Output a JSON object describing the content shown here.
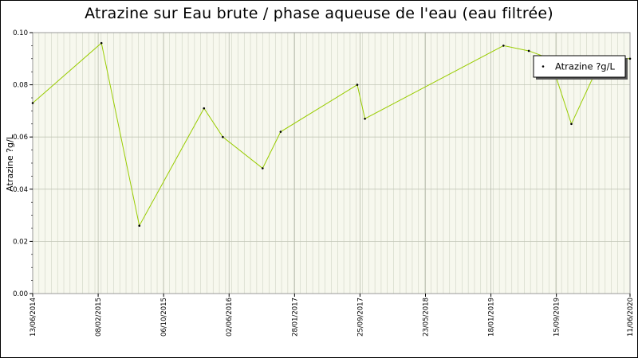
{
  "chart_data": {
    "type": "line",
    "title": "Atrazine sur Eau brute / phase aqueuse de l'eau (eau filtrée)",
    "ylabel": "Atrazine ?g/L",
    "xlabel": "",
    "ylim": [
      0,
      0.1
    ],
    "xlim": [
      "13/06/2014",
      "11/06/2020"
    ],
    "y_ticks": [
      "0.00",
      "0.02",
      "0.04",
      "0.06",
      "0.08",
      "0.10"
    ],
    "x_ticks": [
      "13/06/2014",
      "08/02/2015",
      "06/10/2015",
      "02/06/2016",
      "28/01/2017",
      "25/09/2017",
      "23/05/2018",
      "18/01/2019",
      "15/09/2019",
      "11/06/2020"
    ],
    "grid": true,
    "legend_position": "top-right",
    "series": [
      {
        "name": "Atrazine ?g/L",
        "color": "#99cc00",
        "marker_color": "#000000",
        "points": [
          {
            "x": "13/06/2014",
            "y": 0.073
          },
          {
            "x": "20/02/2015",
            "y": 0.096
          },
          {
            "x": "09/07/2015",
            "y": 0.026
          },
          {
            "x": "02/03/2016",
            "y": 0.071
          },
          {
            "x": "10/05/2016",
            "y": 0.06
          },
          {
            "x": "03/10/2016",
            "y": 0.048
          },
          {
            "x": "08/12/2016",
            "y": 0.062
          },
          {
            "x": "15/09/2017",
            "y": 0.08
          },
          {
            "x": "13/10/2017",
            "y": 0.067
          },
          {
            "x": "05/03/2019",
            "y": 0.095
          },
          {
            "x": "06/06/2019",
            "y": 0.093
          },
          {
            "x": "23/08/2019",
            "y": 0.09
          },
          {
            "x": "09/11/2019",
            "y": 0.065
          },
          {
            "x": "28/02/2020",
            "y": 0.09
          },
          {
            "x": "11/06/2020",
            "y": 0.09
          }
        ]
      }
    ]
  }
}
